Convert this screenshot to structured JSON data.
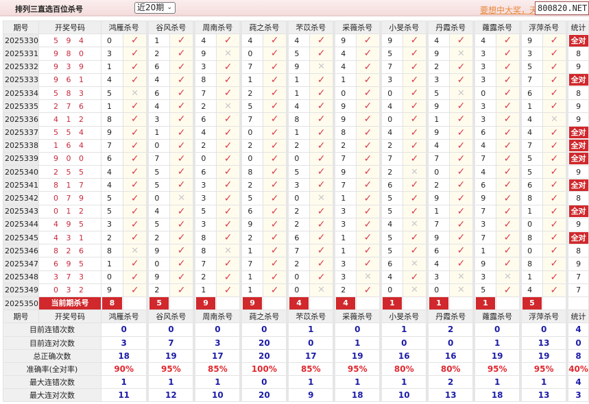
{
  "header": {
    "title": "排列三直选百位杀号",
    "period_select": "近20期",
    "promo_text": "要想中大奖，天",
    "site": "800820.NET"
  },
  "columns": {
    "period": "期号",
    "draw": "开奖号码",
    "predictors": [
      "鸿雁杀号",
      "谷风杀号",
      "周南杀号",
      "莼之杀号",
      "芣苡杀号",
      "采薇杀号",
      "小旻杀号",
      "丹霞杀号",
      "蕹露杀号",
      "浮萍杀号"
    ],
    "stat": "统计"
  },
  "rows": [
    {
      "period": "2025330",
      "draw": "5 9 4",
      "picks": [
        "0",
        "1",
        "4",
        "4",
        "4",
        "9",
        "9",
        "4",
        "4",
        "9"
      ],
      "hits": [
        1,
        1,
        1,
        1,
        1,
        1,
        1,
        1,
        1,
        1
      ],
      "stat": "全对"
    },
    {
      "period": "2025331",
      "draw": "9 8 0",
      "picks": [
        "3",
        "2",
        "9",
        "0",
        "5",
        "4",
        "5",
        "9",
        "3",
        "3"
      ],
      "hits": [
        1,
        1,
        0,
        1,
        1,
        1,
        1,
        0,
        1,
        1
      ],
      "stat": "8"
    },
    {
      "period": "2025332",
      "draw": "9 3 9",
      "picks": [
        "1",
        "6",
        "3",
        "7",
        "9",
        "4",
        "7",
        "2",
        "3",
        "5"
      ],
      "hits": [
        1,
        1,
        1,
        1,
        0,
        1,
        1,
        1,
        1,
        1
      ],
      "stat": "9"
    },
    {
      "period": "2025333",
      "draw": "9 6 1",
      "picks": [
        "4",
        "4",
        "8",
        "1",
        "1",
        "1",
        "3",
        "3",
        "3",
        "7"
      ],
      "hits": [
        1,
        1,
        1,
        1,
        1,
        1,
        1,
        1,
        1,
        1
      ],
      "stat": "全对"
    },
    {
      "period": "2025334",
      "draw": "5 8 3",
      "picks": [
        "5",
        "6",
        "7",
        "2",
        "1",
        "0",
        "0",
        "5",
        "0",
        "6"
      ],
      "hits": [
        0,
        1,
        1,
        1,
        1,
        1,
        1,
        0,
        1,
        1
      ],
      "stat": "8"
    },
    {
      "period": "2025335",
      "draw": "2 7 6",
      "picks": [
        "1",
        "4",
        "2",
        "5",
        "4",
        "9",
        "4",
        "9",
        "3",
        "1"
      ],
      "hits": [
        1,
        1,
        0,
        1,
        1,
        1,
        1,
        1,
        1,
        1
      ],
      "stat": "9"
    },
    {
      "period": "2025336",
      "draw": "4 1 2",
      "picks": [
        "8",
        "3",
        "6",
        "7",
        "8",
        "9",
        "0",
        "1",
        "3",
        "4"
      ],
      "hits": [
        1,
        1,
        1,
        1,
        1,
        1,
        1,
        1,
        1,
        0
      ],
      "stat": "9"
    },
    {
      "period": "2025337",
      "draw": "5 5 4",
      "picks": [
        "9",
        "1",
        "4",
        "0",
        "1",
        "8",
        "4",
        "9",
        "6",
        "4"
      ],
      "hits": [
        1,
        1,
        1,
        1,
        1,
        1,
        1,
        1,
        1,
        1
      ],
      "stat": "全对"
    },
    {
      "period": "2025338",
      "draw": "1 6 4",
      "picks": [
        "7",
        "0",
        "2",
        "2",
        "2",
        "2",
        "2",
        "4",
        "4",
        "7"
      ],
      "hits": [
        1,
        1,
        1,
        1,
        1,
        1,
        1,
        1,
        1,
        1
      ],
      "stat": "全对"
    },
    {
      "period": "2025339",
      "draw": "9 0 0",
      "picks": [
        "6",
        "7",
        "0",
        "0",
        "0",
        "7",
        "7",
        "7",
        "7",
        "5"
      ],
      "hits": [
        1,
        1,
        1,
        1,
        1,
        1,
        1,
        1,
        1,
        1
      ],
      "stat": "全对"
    },
    {
      "period": "2025340",
      "draw": "2 5 5",
      "picks": [
        "4",
        "5",
        "6",
        "8",
        "5",
        "9",
        "2",
        "0",
        "4",
        "5"
      ],
      "hits": [
        1,
        1,
        1,
        1,
        1,
        1,
        0,
        1,
        1,
        1
      ],
      "stat": "9"
    },
    {
      "period": "2025341",
      "draw": "8 1 7",
      "picks": [
        "4",
        "5",
        "3",
        "2",
        "3",
        "7",
        "6",
        "2",
        "6",
        "6"
      ],
      "hits": [
        1,
        1,
        1,
        1,
        1,
        1,
        1,
        1,
        1,
        1
      ],
      "stat": "全对"
    },
    {
      "period": "2025342",
      "draw": "0 7 9",
      "picks": [
        "5",
        "0",
        "3",
        "5",
        "0",
        "1",
        "5",
        "9",
        "9",
        "8"
      ],
      "hits": [
        1,
        0,
        1,
        1,
        0,
        1,
        1,
        1,
        1,
        1
      ],
      "stat": "8"
    },
    {
      "period": "2025343",
      "draw": "0 1 2",
      "picks": [
        "5",
        "4",
        "5",
        "6",
        "2",
        "3",
        "5",
        "1",
        "7",
        "1"
      ],
      "hits": [
        1,
        1,
        1,
        1,
        1,
        1,
        1,
        1,
        1,
        1
      ],
      "stat": "全对"
    },
    {
      "period": "2025344",
      "draw": "4 9 5",
      "picks": [
        "3",
        "5",
        "3",
        "9",
        "2",
        "3",
        "4",
        "7",
        "3",
        "0"
      ],
      "hits": [
        1,
        1,
        1,
        1,
        1,
        1,
        0,
        1,
        1,
        1
      ],
      "stat": "9"
    },
    {
      "period": "2025345",
      "draw": "4 3 1",
      "picks": [
        "2",
        "2",
        "8",
        "2",
        "6",
        "1",
        "5",
        "9",
        "7",
        "8"
      ],
      "hits": [
        1,
        1,
        1,
        1,
        1,
        1,
        1,
        1,
        1,
        1
      ],
      "stat": "全对"
    },
    {
      "period": "2025346",
      "draw": "8 2 6",
      "picks": [
        "8",
        "9",
        "8",
        "1",
        "7",
        "1",
        "5",
        "6",
        "1",
        "0"
      ],
      "hits": [
        0,
        1,
        0,
        1,
        1,
        1,
        1,
        1,
        1,
        1
      ],
      "stat": "8"
    },
    {
      "period": "2025347",
      "draw": "6 9 5",
      "picks": [
        "1",
        "0",
        "7",
        "7",
        "2",
        "3",
        "6",
        "4",
        "9",
        "8"
      ],
      "hits": [
        1,
        1,
        1,
        1,
        1,
        1,
        0,
        1,
        1,
        1
      ],
      "stat": "9"
    },
    {
      "period": "2025348",
      "draw": "3 7 3",
      "picks": [
        "0",
        "9",
        "2",
        "1",
        "0",
        "3",
        "4",
        "3",
        "3",
        "1"
      ],
      "hits": [
        1,
        1,
        1,
        1,
        1,
        0,
        1,
        0,
        0,
        1
      ],
      "stat": "7"
    },
    {
      "period": "2025349",
      "draw": "0 3 2",
      "picks": [
        "9",
        "2",
        "1",
        "1",
        "0",
        "2",
        "0",
        "0",
        "5",
        "4"
      ],
      "hits": [
        1,
        1,
        1,
        1,
        0,
        1,
        0,
        0,
        1,
        1
      ],
      "stat": "7"
    }
  ],
  "current": {
    "period": "2025350",
    "label": "当前期杀号",
    "picks": [
      "8",
      "5",
      "9",
      "9",
      "4",
      "4",
      "1",
      "1",
      "1",
      "5"
    ]
  },
  "stats": [
    {
      "label": "目前连错次数",
      "values": [
        "0",
        "0",
        "0",
        "0",
        "1",
        "0",
        "1",
        "2",
        "0",
        "0"
      ],
      "stat": "4"
    },
    {
      "label": "目前连对次数",
      "values": [
        "3",
        "7",
        "3",
        "20",
        "0",
        "1",
        "0",
        "0",
        "1",
        "13"
      ],
      "stat": "0"
    },
    {
      "label": "总正确次数",
      "values": [
        "18",
        "19",
        "17",
        "20",
        "17",
        "19",
        "16",
        "16",
        "19",
        "19"
      ],
      "stat": "8"
    },
    {
      "label": "准确率(全对率)",
      "values": [
        "90%",
        "95%",
        "85%",
        "100%",
        "85%",
        "95%",
        "80%",
        "80%",
        "95%",
        "95%"
      ],
      "stat": "40%",
      "rate": true
    },
    {
      "label": "最大连错次数",
      "values": [
        "1",
        "1",
        "1",
        "0",
        "1",
        "1",
        "1",
        "2",
        "1",
        "1"
      ],
      "stat": "4"
    },
    {
      "label": "最大连对次数",
      "values": [
        "11",
        "12",
        "10",
        "20",
        "9",
        "18",
        "10",
        "13",
        "18",
        "13"
      ],
      "stat": "3"
    }
  ],
  "marks": {
    "hit": "✓",
    "miss": "✕"
  },
  "colors": {
    "accent": "#d0282c",
    "hit": "#d93a48",
    "miss": "#c9c9c9",
    "stat_value": "#1c1ca8",
    "rate": "#e0282f"
  }
}
